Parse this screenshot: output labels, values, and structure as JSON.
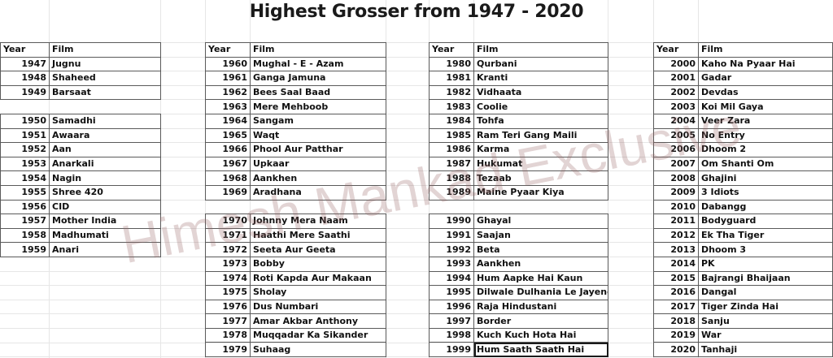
{
  "title": "Highest Grosser from 1947 - 2020",
  "headers": {
    "year": "Year",
    "film": "Film"
  },
  "watermark": "Himesh Mankad Exclusive",
  "colors": {
    "border": "#5a5a5a",
    "grid": "#e6e6e6",
    "watermark": "#966464",
    "text": "#111111"
  },
  "tables": [
    {
      "blocks": [
        [
          [
            "1947",
            "Jugnu"
          ],
          [
            "1948",
            "Shaheed"
          ],
          [
            "1949",
            "Barsaat"
          ]
        ],
        [
          [
            "1950",
            "Samadhi"
          ],
          [
            "1951",
            "Awaara"
          ],
          [
            "1952",
            "Aan"
          ],
          [
            "1953",
            "Anarkali"
          ],
          [
            "1954",
            "Nagin"
          ],
          [
            "1955",
            "Shree 420"
          ],
          [
            "1956",
            "CID"
          ],
          [
            "1957",
            "Mother India"
          ],
          [
            "1958",
            "Madhumati"
          ],
          [
            "1959",
            "Anari"
          ]
        ]
      ]
    },
    {
      "blocks": [
        [
          [
            "1960",
            "Mughal - E - Azam"
          ],
          [
            "1961",
            "Ganga Jamuna"
          ],
          [
            "1962",
            "Bees Saal Baad"
          ],
          [
            "1963",
            "Mere Mehboob"
          ],
          [
            "1964",
            "Sangam"
          ],
          [
            "1965",
            "Waqt"
          ],
          [
            "1966",
            "Phool Aur Patthar"
          ],
          [
            "1967",
            "Upkaar"
          ],
          [
            "1968",
            "Aankhen"
          ],
          [
            "1969",
            "Aradhana"
          ]
        ],
        [
          [
            "1970",
            "Johnny Mera Naam"
          ],
          [
            "1971",
            "Haathi Mere Saathi"
          ],
          [
            "1972",
            "Seeta Aur Geeta"
          ],
          [
            "1973",
            "Bobby"
          ],
          [
            "1974",
            "Roti Kapda Aur Makaan"
          ],
          [
            "1975",
            "Sholay"
          ],
          [
            "1976",
            "Dus Numbari"
          ],
          [
            "1977",
            "Amar Akbar Anthony"
          ],
          [
            "1978",
            "Muqqadar Ka Sikander"
          ],
          [
            "1979",
            "Suhaag"
          ]
        ]
      ]
    },
    {
      "blocks": [
        [
          [
            "1980",
            "Qurbani"
          ],
          [
            "1981",
            "Kranti"
          ],
          [
            "1982",
            "Vidhaata"
          ],
          [
            "1983",
            "Coolie"
          ],
          [
            "1984",
            "Tohfa"
          ],
          [
            "1985",
            "Ram Teri Gang Maili"
          ],
          [
            "1986",
            "Karma"
          ],
          [
            "1987",
            "Hukumat"
          ],
          [
            "1988",
            "Tezaab"
          ],
          [
            "1989",
            "Maine Pyaar Kiya"
          ]
        ],
        [
          [
            "1990",
            "Ghayal"
          ],
          [
            "1991",
            "Saajan"
          ],
          [
            "1992",
            "Beta"
          ],
          [
            "1993",
            "Aankhen"
          ],
          [
            "1994",
            "Hum Aapke Hai Kaun"
          ],
          [
            "1995",
            "Dilwale Dulhania Le Jayenge"
          ],
          [
            "1996",
            "Raja Hindustani"
          ],
          [
            "1997",
            "Border"
          ],
          [
            "1998",
            "Kuch Kuch Hota Hai"
          ],
          [
            "1999",
            "Hum Saath Saath Hai"
          ]
        ]
      ]
    },
    {
      "blocks": [
        [
          [
            "2000",
            "Kaho Na Pyaar Hai"
          ],
          [
            "2001",
            "Gadar"
          ],
          [
            "2002",
            "Devdas"
          ],
          [
            "2003",
            "Koi Mil Gaya"
          ],
          [
            "2004",
            "Veer Zara"
          ],
          [
            "2005",
            "No Entry"
          ],
          [
            "2006",
            "Dhoom 2"
          ],
          [
            "2007",
            "Om Shanti Om"
          ],
          [
            "2008",
            "Ghajini"
          ],
          [
            "2009",
            "3 Idiots"
          ],
          [
            "2010",
            "Dabangg"
          ],
          [
            "2011",
            "Bodyguard"
          ],
          [
            "2012",
            "Ek Tha Tiger"
          ],
          [
            "2013",
            "Dhoom 3"
          ],
          [
            "2014",
            "PK"
          ],
          [
            "2015",
            "Bajrangi Bhaijaan"
          ],
          [
            "2016",
            "Dangal"
          ],
          [
            "2017",
            "Tiger Zinda Hai"
          ],
          [
            "2018",
            "Sanju"
          ],
          [
            "2019",
            "War"
          ],
          [
            "2020",
            "Tanhaji"
          ]
        ]
      ]
    }
  ]
}
